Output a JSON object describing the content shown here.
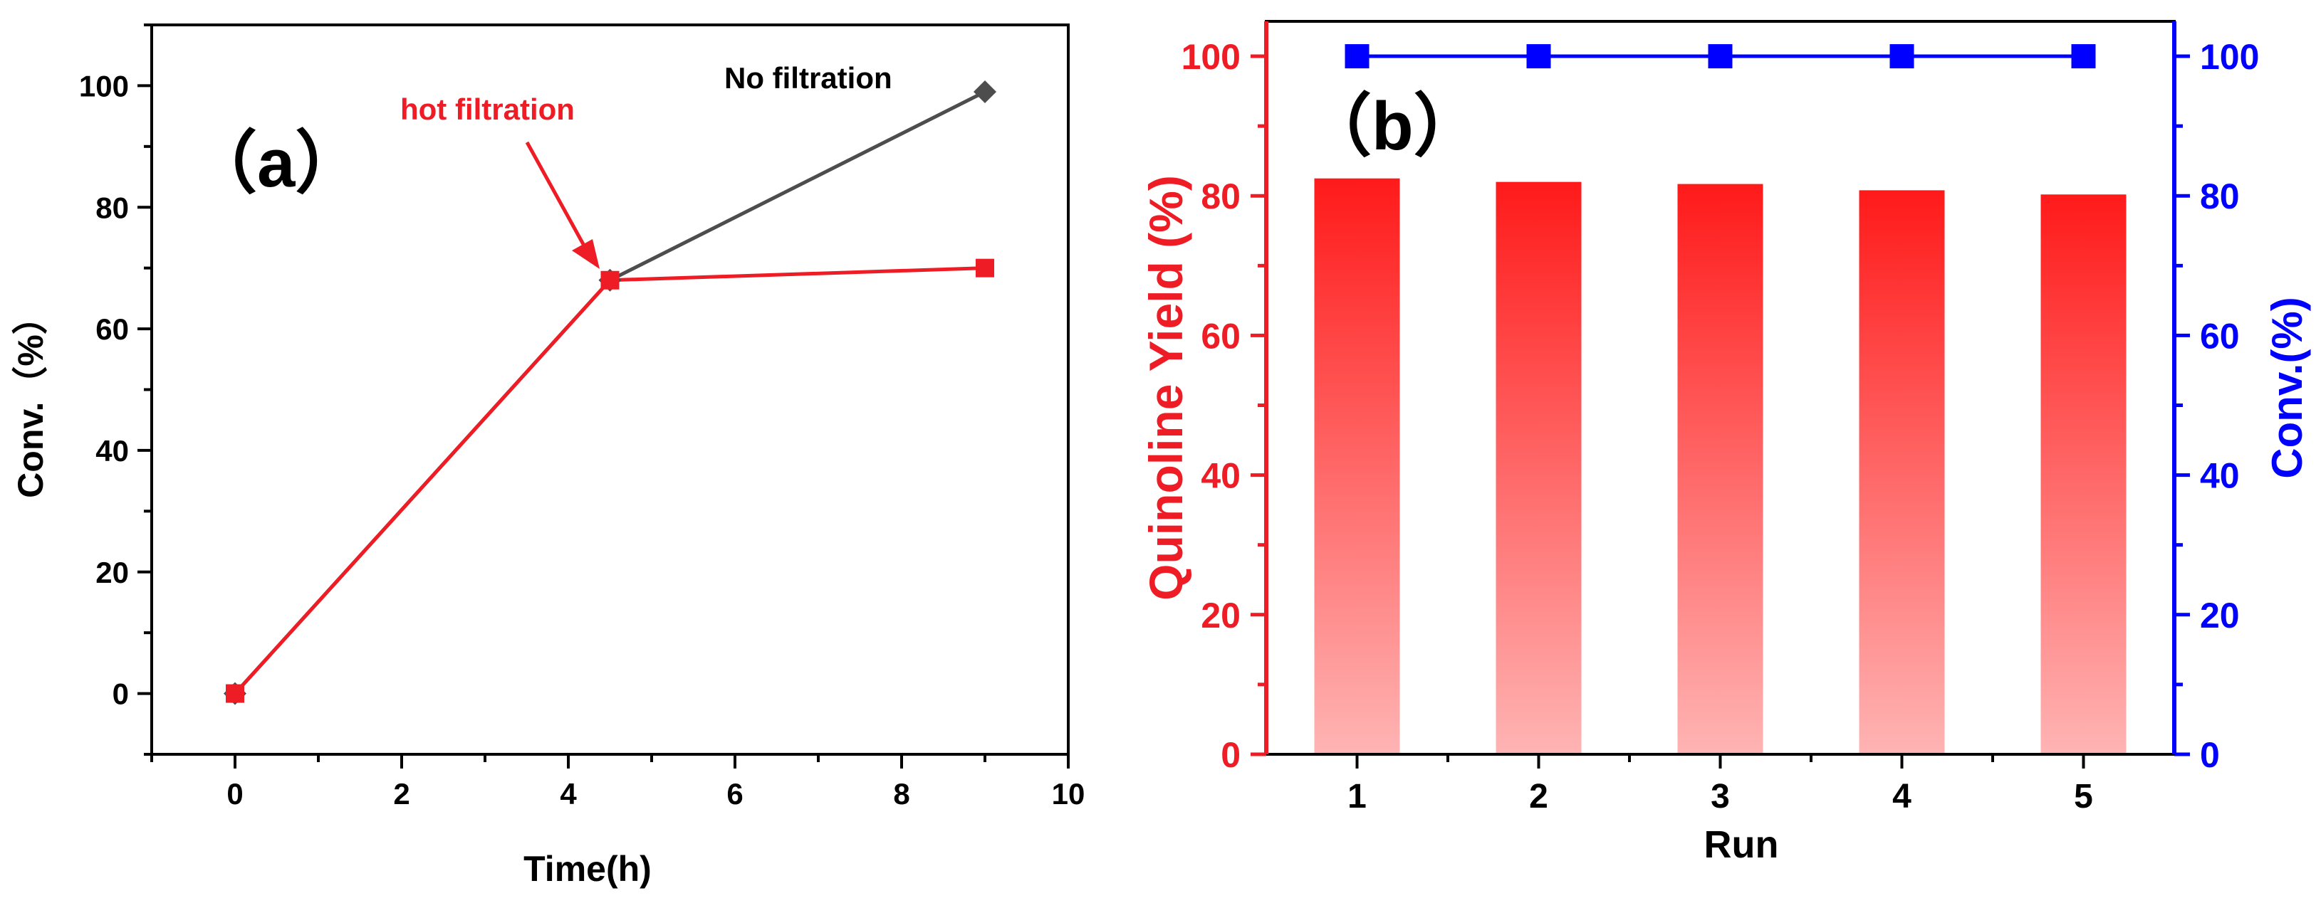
{
  "chart_data": [
    {
      "panel_label": "（a）",
      "type": "line",
      "xlabel": "Time(h)",
      "ylabel": "Conv.（%）",
      "xlim": [
        -1,
        10
      ],
      "ylim": [
        -10,
        110
      ],
      "xticks": [
        "0",
        "2",
        "4",
        "6",
        "8",
        "10"
      ],
      "yticks": [
        "0",
        "20",
        "40",
        "60",
        "80",
        "100"
      ],
      "series": [
        {
          "name": "hot filtration",
          "color": "#ee1c25",
          "marker": "square",
          "x": [
            0,
            4.5,
            9
          ],
          "y": [
            0,
            68,
            70
          ]
        },
        {
          "name": "No filtration",
          "color": "#4d4d4d",
          "marker": "diamond",
          "x": [
            0,
            4.5,
            9
          ],
          "y": [
            0,
            68,
            99
          ]
        }
      ],
      "annotations": [
        {
          "text": "hot filtration",
          "color": "#ee1c25",
          "x": 4.0,
          "y": 96,
          "points_to": [
            4.5,
            70
          ]
        },
        {
          "text": "No filtration",
          "color": "#000000",
          "x": 7.5,
          "y": 101
        }
      ]
    },
    {
      "panel_label": "（b）",
      "type": "bar",
      "xlabel": "Run",
      "ylabel": "Quinoline Yield (%)",
      "ylabel_right": "Conv.(%)",
      "categories": [
        "1",
        "2",
        "3",
        "4",
        "5"
      ],
      "ylim": [
        0,
        105
      ],
      "yticks": [
        "0",
        "20",
        "40",
        "60",
        "80",
        "100"
      ],
      "series": [
        {
          "name": "Quinoline Yield",
          "axis": "left",
          "type": "bar",
          "color": "#ff1a1a",
          "values": [
            82.5,
            82.0,
            81.7,
            80.8,
            80.2
          ]
        },
        {
          "name": "Conv.",
          "axis": "right",
          "type": "line",
          "color": "#0000ff",
          "marker": "square",
          "values": [
            100,
            100,
            100,
            100,
            100
          ]
        }
      ],
      "left_axis_color": "#ee1c25",
      "right_axis_color": "#0000ff"
    }
  ]
}
